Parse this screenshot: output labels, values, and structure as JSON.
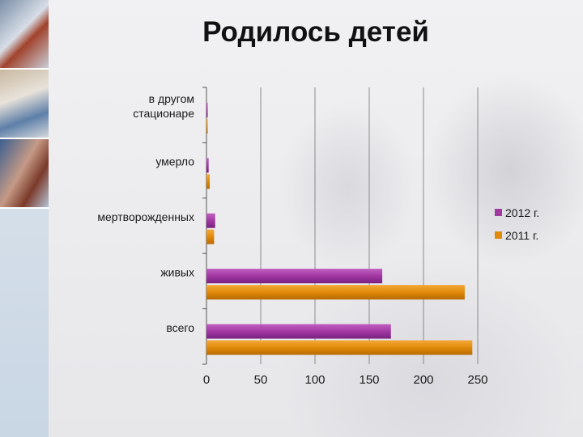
{
  "slide": {
    "title": "Родилось детей"
  },
  "chart_data": {
    "type": "bar",
    "orientation": "horizontal",
    "categories": [
      "в другом стационаре",
      "умерло",
      "мертворожденных",
      "живых",
      "всего"
    ],
    "category_labels": [
      [
        "в другом",
        "стационаре"
      ],
      [
        "умерло"
      ],
      [
        "мертворожденных"
      ],
      [
        "живых"
      ],
      [
        "всего"
      ]
    ],
    "series": [
      {
        "name": "2012 г.",
        "color": "#a238a2",
        "values": [
          1,
          2,
          8,
          162,
          170
        ]
      },
      {
        "name": "2011 г.",
        "color": "#e08a0a",
        "values": [
          1,
          3,
          7,
          238,
          245
        ]
      }
    ],
    "xlim": [
      0,
      250
    ],
    "xticks": [
      "0",
      "50",
      "100",
      "150",
      "200",
      "250"
    ],
    "grid": true,
    "legend": "right"
  }
}
